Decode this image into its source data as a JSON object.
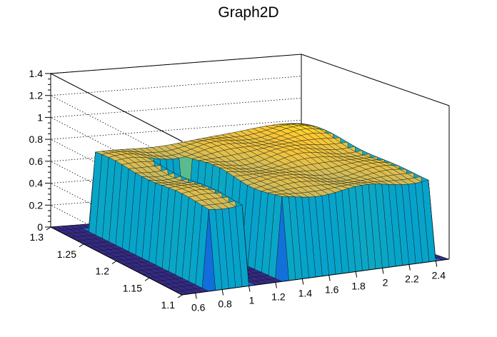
{
  "chart_data": {
    "type": "surface",
    "title": "Graph2D",
    "xlabel": "",
    "ylabel": "",
    "zlabel": "",
    "xlim": [
      0.5,
      2.5
    ],
    "ylim": [
      1.1,
      1.3
    ],
    "zlim": [
      0,
      1.4
    ],
    "x_ticks": [
      0.6,
      0.8,
      1,
      1.2,
      1.4,
      1.6,
      1.8,
      2,
      2.2,
      2.4
    ],
    "x_tick_labels": [
      "0.6",
      "0.8",
      "1",
      "1.2",
      "1.4",
      "1.6",
      "1.8",
      "2",
      "2.2",
      "2.4"
    ],
    "y_ticks": [
      1.1,
      1.15,
      1.2,
      1.25,
      1.3
    ],
    "y_tick_labels": [
      "1.1",
      "1.15",
      "1.2",
      "1.25",
      "1.3"
    ],
    "z_ticks": [
      0,
      0.2,
      0.4,
      0.6,
      0.8,
      1,
      1.2,
      1.4
    ],
    "z_tick_labels": [
      "0",
      "0.2",
      "0.4",
      "0.6",
      "0.8",
      "1",
      "1.2",
      "1.4"
    ],
    "grid": true,
    "colormap": [
      "#352a87",
      "#0f5cdd",
      "#1481d6",
      "#06a4ca",
      "#2eb7a4",
      "#87bf77",
      "#d1bb59",
      "#fec832",
      "#f9fb0e"
    ],
    "surface_description": {
      "plateau_level": 0.8,
      "plateau_x_range": [
        0.72,
        2.42
      ],
      "plateau_y_range": [
        1.11,
        1.28
      ],
      "gap_x_range": [
        1.05,
        1.27
      ],
      "gap_y_range": [
        1.1,
        1.24
      ],
      "peak_value": 0.95,
      "peak_location": [
        2.2,
        1.26
      ],
      "outside_value": 0
    }
  }
}
